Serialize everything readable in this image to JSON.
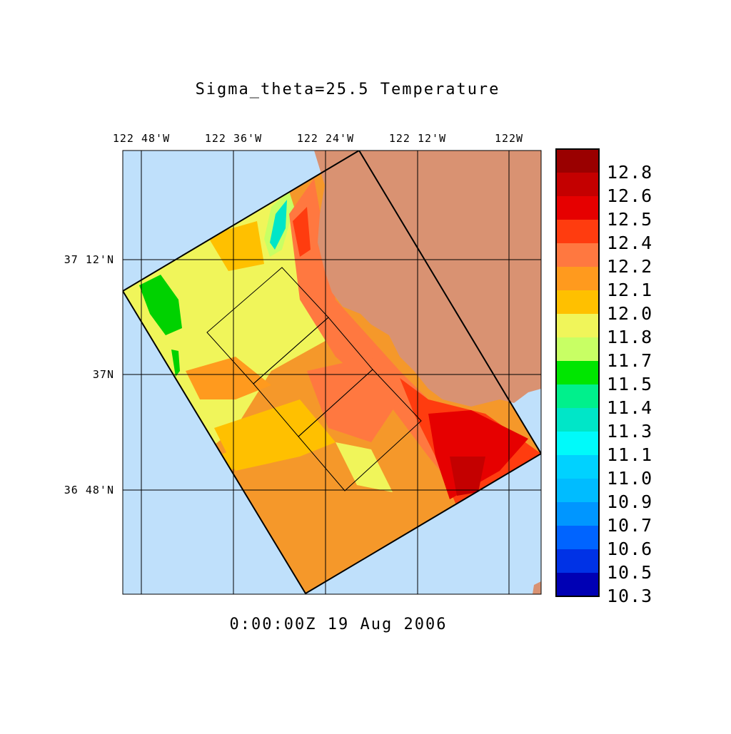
{
  "title": "Sigma_theta=25.5 Temperature",
  "timestamp": "0:00:00Z  19 Aug 2006",
  "longitude_labels": [
    "122 48'W",
    "122 36'W",
    "122 24'W",
    "122 12'W",
    "122W"
  ],
  "latitude_labels": [
    "37 12'N",
    "37N",
    "36 48'N"
  ],
  "colorbar": {
    "labels": [
      "12.8",
      "12.6",
      "12.5",
      "12.4",
      "12.2",
      "12.1",
      "12.0",
      "11.8",
      "11.7",
      "11.5",
      "11.4",
      "11.3",
      "11.1",
      "11.0",
      "10.9",
      "10.7",
      "10.6",
      "10.5",
      "10.3"
    ],
    "colors": [
      "#9a0000",
      "#c40000",
      "#e60000",
      "#ff3c0f",
      "#ff7840",
      "#ff9a1e",
      "#ffc000",
      "#f0f55a",
      "#c8ff64",
      "#00e600",
      "#00f08c",
      "#00e6c8",
      "#00fafa",
      "#00d2ff",
      "#00bcff",
      "#0096ff",
      "#0064ff",
      "#0032e6",
      "#0000b4"
    ]
  },
  "colors": {
    "ocean": "#bfe0fb",
    "land": "#d99272",
    "field_base": "#f5982a"
  }
}
